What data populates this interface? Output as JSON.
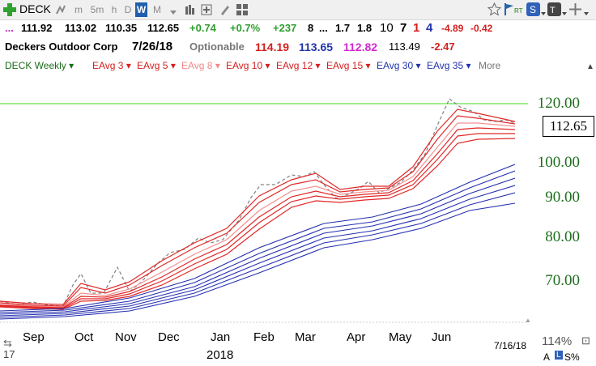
{
  "toolbar": {
    "symbol": "DECK",
    "periods": [
      "m",
      "5m",
      "h",
      "D",
      "W",
      "M"
    ],
    "active_period": "W",
    "rt_label": "RT"
  },
  "quote": {
    "prefix": "...",
    "open": "111.92",
    "high": "113.02",
    "low": "110.35",
    "close": "112.65",
    "change": "+0.74",
    "change_pct": "+0.7%",
    "volume_change": "+237",
    "rank": "8",
    "dots": "...",
    "v1": "1.7",
    "v2": "1.8",
    "v3": "10",
    "v4": "7",
    "v5": "1",
    "v6": "4",
    "v7": "-4.89",
    "v8": "-0.42"
  },
  "info": {
    "name": "Deckers Outdoor Corp",
    "date": "7/26/18",
    "optionable": "Optionable",
    "a": "114.19",
    "b": "113.65",
    "c": "112.82",
    "d": "113.49",
    "e": "-2.47"
  },
  "legend": {
    "items": [
      {
        "label": "DECK Weekly",
        "color": "#1a6b1a"
      },
      {
        "label": "EAvg 3",
        "color": "#d42020"
      },
      {
        "label": "EAvg 5",
        "color": "#d42020"
      },
      {
        "label": "EAvg 8",
        "color": "#f08a8a"
      },
      {
        "label": "EAvg 10",
        "color": "#d42020"
      },
      {
        "label": "EAvg 12",
        "color": "#d42020"
      },
      {
        "label": "EAvg 15",
        "color": "#d42020"
      },
      {
        "label": "EAvg 30",
        "color": "#2233aa"
      },
      {
        "label": "EAvg 35",
        "color": "#2233aa"
      }
    ],
    "more": "More"
  },
  "axis": {
    "yticks": [
      "120.00",
      "100.00",
      "90.00",
      "80.00",
      "70.00"
    ],
    "current_price": "112.65",
    "x_months": [
      "Sep",
      "Oct",
      "Nov",
      "Dec",
      "Jan",
      "Feb",
      "Mar",
      "Apr",
      "May",
      "Jun"
    ],
    "year_label": "2018",
    "prev_year_label": "17",
    "date_label": "7/16/18",
    "zoom": "114%",
    "scale_a": "A",
    "scale_l": "L",
    "scale_pct": "S%"
  },
  "colors": {
    "ref_line": "#66e04a",
    "red_avg": "#e02828",
    "pink_avg": "#f29090",
    "blue_avg": "#2530b0",
    "price_line": "#808080",
    "ytick": "#1d6e1d"
  }
}
